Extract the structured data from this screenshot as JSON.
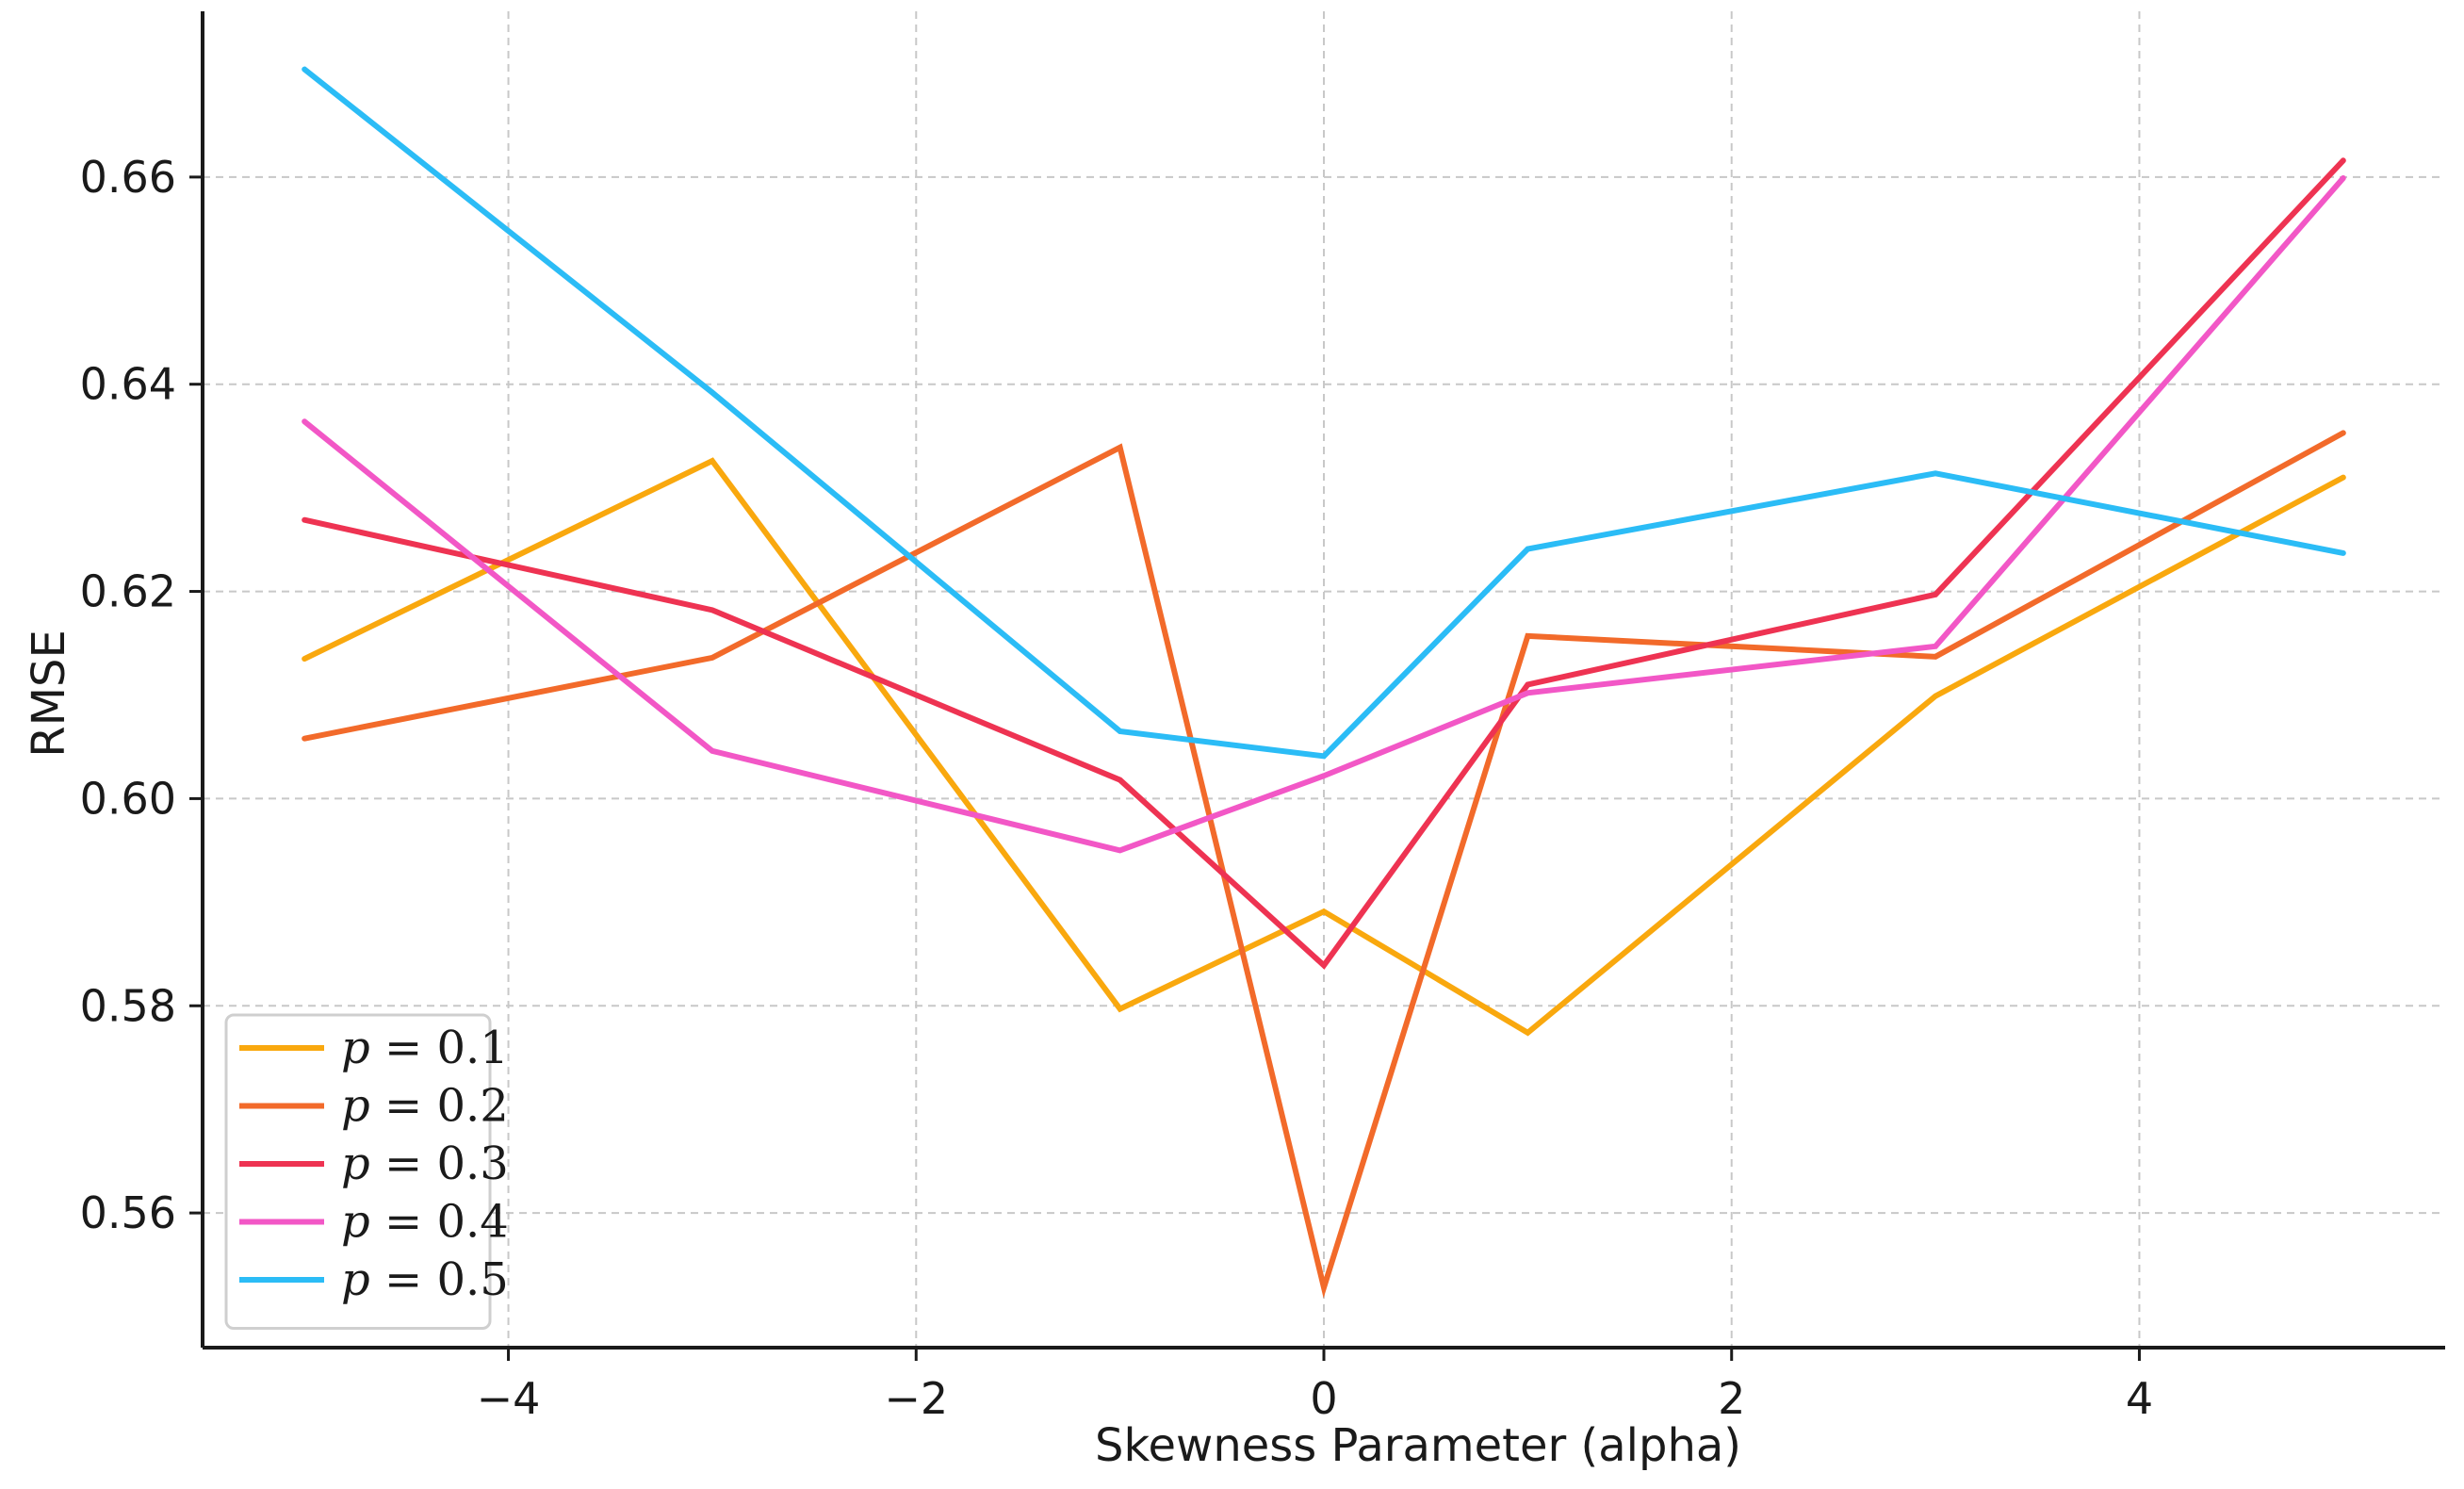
{
  "chart_data": {
    "type": "line",
    "title": "",
    "xlabel": "Skewness Parameter (alpha)",
    "ylabel": "RMSE",
    "xlim": [
      -5.5,
      5.5
    ],
    "ylim": [
      0.547,
      0.676
    ],
    "x_ticks": [
      -4,
      -2,
      0,
      2,
      4
    ],
    "x_tick_labels": [
      "−4",
      "−2",
      "0",
      "2",
      "4"
    ],
    "y_ticks": [
      0.56,
      0.58,
      0.6,
      0.62,
      0.64,
      0.66
    ],
    "y_tick_labels": [
      "0.56",
      "0.58",
      "0.60",
      "0.62",
      "0.64",
      "0.66"
    ],
    "grid": true,
    "legend_position": "bottom-left",
    "x": [
      -5,
      -3,
      -1,
      0,
      1,
      3,
      5
    ],
    "series": [
      {
        "name": "p = 0.1",
        "legend_var": "p",
        "legend_value": "= 0.1",
        "color": "#f9a80e",
        "values": [
          0.6135,
          0.6326,
          0.5797,
          0.5891,
          0.5774,
          0.6099,
          0.631
        ]
      },
      {
        "name": "p = 0.2",
        "legend_var": "p",
        "legend_value": "= 0.2",
        "color": "#f26a2a",
        "values": [
          0.6058,
          0.6136,
          0.6339,
          0.5528,
          0.6157,
          0.6137,
          0.6353
        ]
      },
      {
        "name": "p = 0.3",
        "legend_var": "p",
        "legend_value": "= 0.3",
        "color": "#ee3352",
        "values": [
          0.6269,
          0.6182,
          0.6018,
          0.5839,
          0.611,
          0.6197,
          0.6616
        ]
      },
      {
        "name": "p = 0.4",
        "legend_var": "p",
        "legend_value": "= 0.4",
        "color": "#f257c6",
        "values": [
          0.6364,
          0.6046,
          0.595,
          0.6022,
          0.6102,
          0.6147,
          0.6599
        ]
      },
      {
        "name": "p = 0.5",
        "legend_var": "p",
        "legend_value": "= 0.5",
        "color": "#2bbcf6",
        "values": [
          0.6704,
          0.6392,
          0.6065,
          0.6041,
          0.6241,
          0.6314,
          0.6237
        ]
      }
    ]
  }
}
